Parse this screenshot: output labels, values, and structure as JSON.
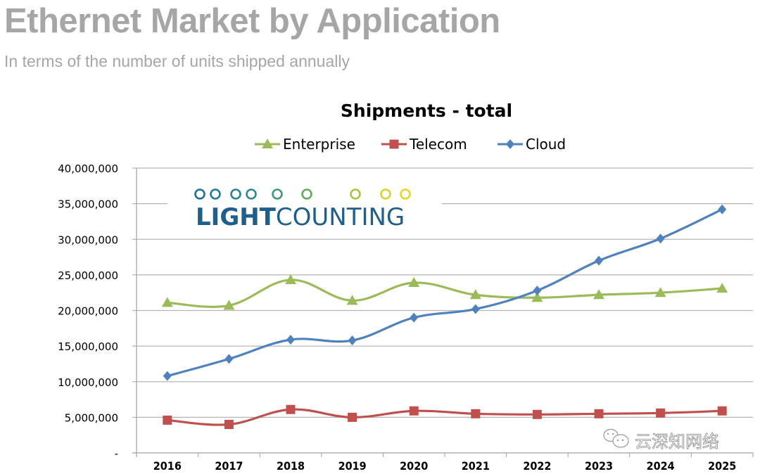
{
  "page": {
    "title": "Ethernet Market by Application",
    "subtitle": "In terms of the number of units shipped annually"
  },
  "logo": {
    "text_bold": "LIGHT",
    "text_regular": "COUNTING",
    "icon": "dotted-line-logo-icon"
  },
  "watermark": {
    "text": "云深知网络",
    "icon": "wechat-icon"
  },
  "chart_data": {
    "type": "line",
    "title": "Shipments - total",
    "xlabel": "",
    "ylabel": "",
    "x": [
      "2016",
      "2017",
      "2018",
      "2019",
      "2020",
      "2021",
      "2022",
      "2023",
      "2024",
      "2025"
    ],
    "ylim": [
      0,
      40000000
    ],
    "yticks": [
      0,
      5000000,
      10000000,
      15000000,
      20000000,
      25000000,
      30000000,
      35000000,
      40000000
    ],
    "ytick_labels": [
      "-",
      "5,000,000",
      "10,000,000",
      "15,000,000",
      "20,000,000",
      "25,000,000",
      "30,000,000",
      "35,000,000",
      "40,000,000"
    ],
    "grid": "horizontal",
    "legend_position": "top-center",
    "smoothed": true,
    "series": [
      {
        "name": "Enterprise",
        "color": "#9bbb59",
        "marker": "triangle",
        "values": [
          21100000,
          20700000,
          24300000,
          21400000,
          23900000,
          22200000,
          21800000,
          22200000,
          22500000,
          23100000
        ]
      },
      {
        "name": "Telecom",
        "color": "#c0504d",
        "marker": "square",
        "values": [
          4600000,
          4000000,
          6100000,
          5000000,
          5900000,
          5500000,
          5400000,
          5500000,
          5600000,
          5900000
        ]
      },
      {
        "name": "Cloud",
        "color": "#4f81bd",
        "marker": "diamond",
        "values": [
          10800000,
          13200000,
          15900000,
          15800000,
          19000000,
          20200000,
          22800000,
          27000000,
          30100000,
          34200000
        ]
      }
    ]
  }
}
